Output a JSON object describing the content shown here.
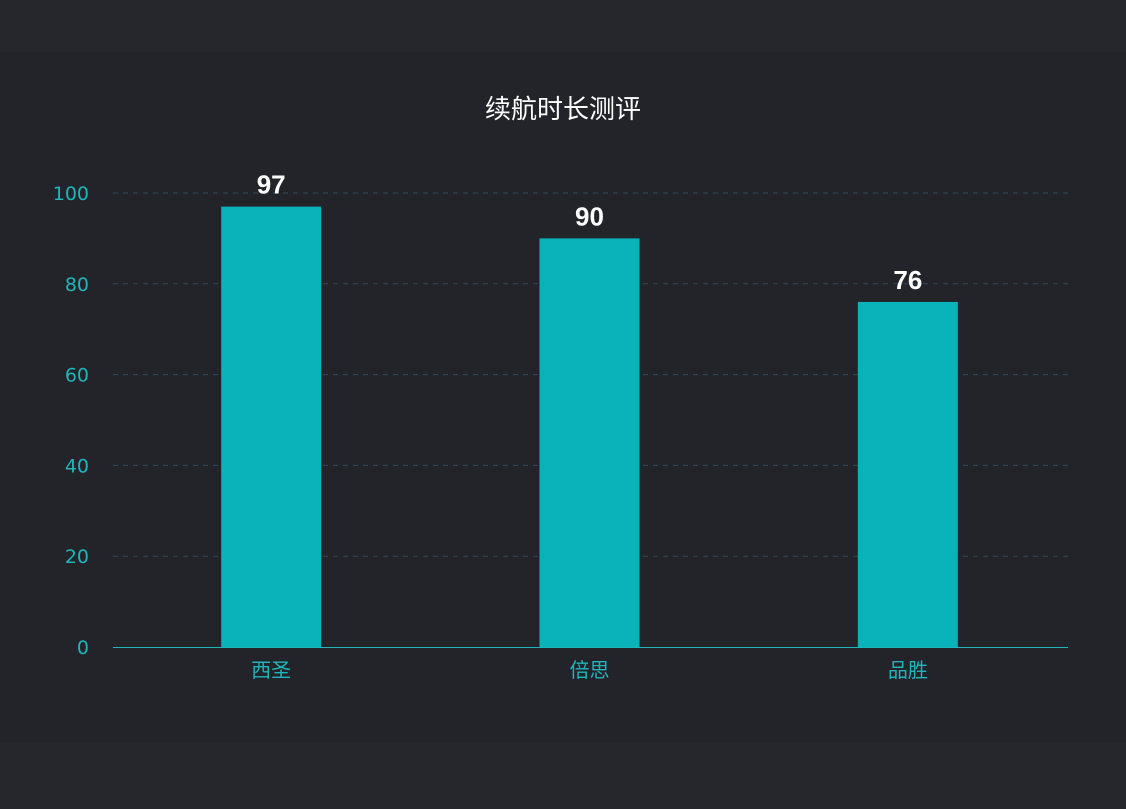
{
  "chart_data": {
    "type": "bar",
    "title": "续航时长测评",
    "categories": [
      "西圣",
      "倍思",
      "品胜"
    ],
    "values": [
      97,
      90,
      76
    ],
    "ylim": [
      0,
      100
    ],
    "yticks": [
      0,
      20,
      40,
      60,
      80,
      100
    ],
    "grid": true,
    "xlabel": "",
    "ylabel": ""
  },
  "colors": {
    "bar": "#08b3ba",
    "axis_text": "#1fb5ba",
    "grid": "#2f4b57",
    "label": "#ffffff"
  }
}
